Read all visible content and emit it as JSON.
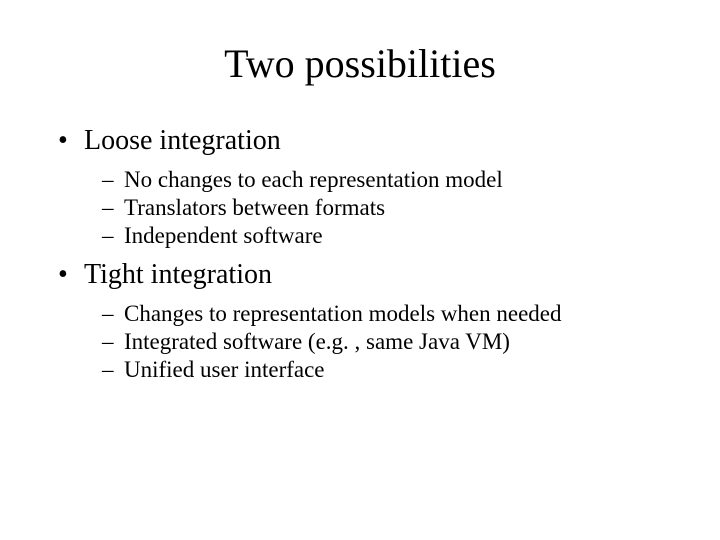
{
  "slide": {
    "title": "Two possibilities",
    "background_color": "#ffffff",
    "text_color": "#000000",
    "font_family": "Times New Roman",
    "title_fontsize": 40,
    "level1_fontsize": 28,
    "level2_fontsize": 23,
    "bullets": [
      {
        "label": "Loose integration",
        "sub": [
          "No changes to each representation model",
          "Translators between formats",
          "Independent software"
        ]
      },
      {
        "label": "Tight integration",
        "sub": [
          "Changes to representation models when needed",
          "Integrated software (e.g. , same Java VM)",
          "Unified user interface"
        ]
      }
    ]
  }
}
